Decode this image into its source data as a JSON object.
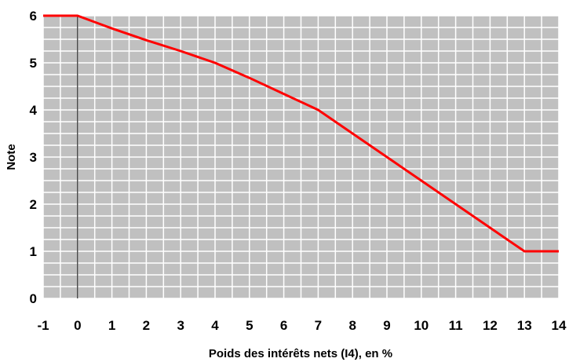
{
  "chart_data": {
    "type": "line",
    "title": "",
    "xlabel": "Poids des intérêts nets (I4), en %",
    "ylabel": "Note",
    "xlim": [
      -1,
      14
    ],
    "ylim": [
      0,
      6
    ],
    "x_ticks": [
      "-1",
      "0",
      "1",
      "2",
      "3",
      "4",
      "5",
      "6",
      "7",
      "8",
      "9",
      "10",
      "11",
      "12",
      "13",
      "14"
    ],
    "y_ticks": [
      "0",
      "1",
      "2",
      "3",
      "4",
      "5",
      "6"
    ],
    "grid": true,
    "series": [
      {
        "x": [
          -1,
          0,
          1,
          2,
          3,
          4,
          5,
          6,
          7,
          8,
          9,
          10,
          11,
          12,
          13,
          14
        ],
        "values": [
          6,
          6,
          5.73,
          5.48,
          5.25,
          5.0,
          4.68,
          4.34,
          4.0,
          3.5,
          3.0,
          2.5,
          2.0,
          1.5,
          1.0,
          1.0
        ],
        "color": "#ff0000"
      }
    ],
    "colors": {
      "plot_background": "#c0c0c0",
      "grid": "#ffffff",
      "line": "#ff0000"
    }
  }
}
